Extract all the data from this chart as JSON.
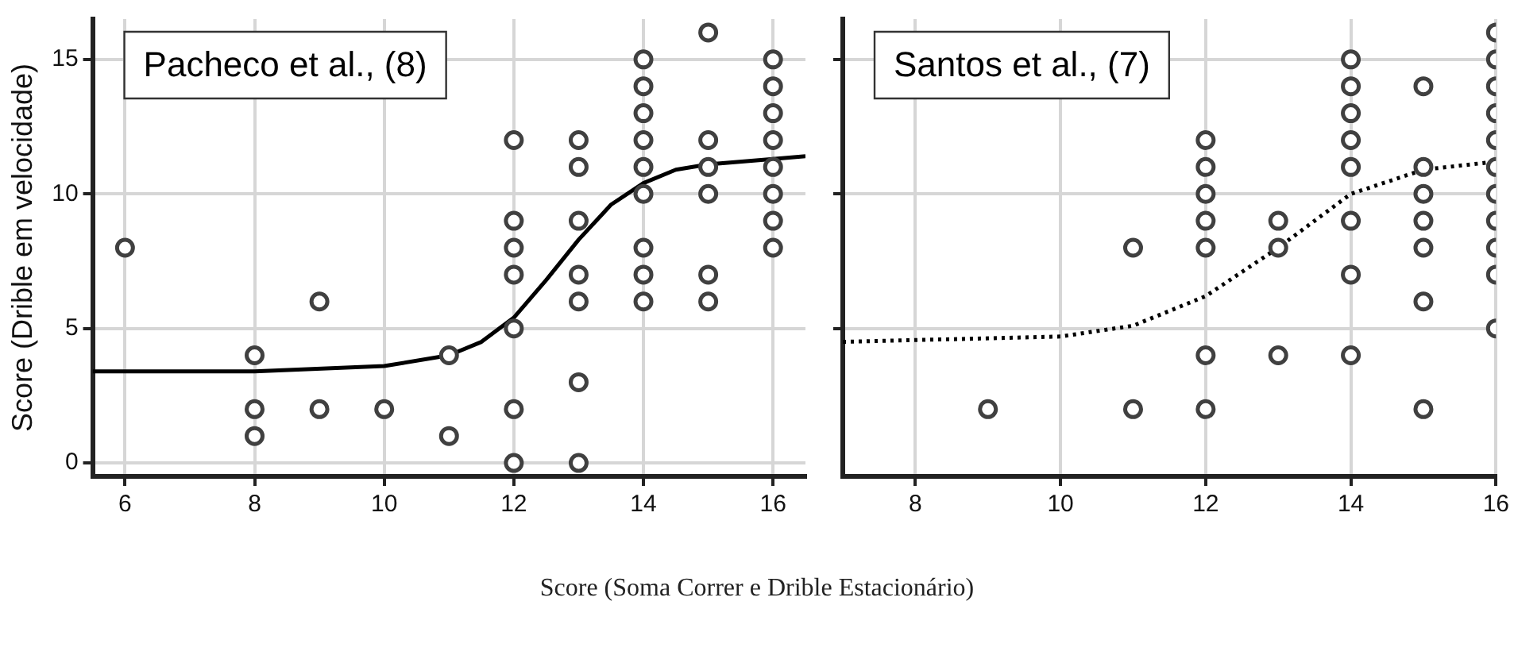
{
  "chart_data": [
    {
      "type": "scatter",
      "ylabel": "Score (Drible em velocidade)",
      "xlabel": "Score (Soma Correr e Drible Estacionário)",
      "annotations": [
        "Pacheco et al., (8)"
      ],
      "xlim": [
        5.5,
        16.5
      ],
      "xticks": [
        6,
        8,
        10,
        12,
        14,
        16
      ],
      "ylim": [
        -0.5,
        16.5
      ],
      "yticks": [
        0,
        5,
        10,
        15
      ],
      "grid": true,
      "legend": false,
      "marker": "circle",
      "series": [
        {
          "type": "scatter",
          "color": "#404040",
          "x": [
            6,
            8,
            8,
            8,
            9,
            9,
            10,
            11,
            11,
            12,
            12,
            12,
            12,
            12,
            12,
            12,
            13,
            13,
            13,
            13,
            13,
            13,
            13,
            14,
            14,
            14,
            14,
            14,
            14,
            14,
            14,
            14,
            15,
            15,
            15,
            15,
            15,
            15,
            16,
            16,
            16,
            16,
            16,
            16,
            16,
            16
          ],
          "values": [
            8,
            4,
            2,
            1,
            6,
            2,
            2,
            4,
            1,
            12,
            9,
            8,
            7,
            5,
            2,
            0,
            12,
            11,
            9,
            7,
            6,
            3,
            0,
            15,
            14,
            13,
            12,
            11,
            10,
            8,
            7,
            6,
            16,
            12,
            11,
            10,
            7,
            6,
            15,
            14,
            13,
            12,
            11,
            10,
            9,
            8
          ]
        },
        {
          "type": "line",
          "color": "#000000",
          "line_style": "solid",
          "marker": "none",
          "x": [
            5.5,
            8,
            10,
            11,
            11.5,
            12,
            12.5,
            13,
            13.5,
            14,
            14.5,
            15,
            16,
            16.5
          ],
          "values": [
            3.4,
            3.4,
            3.6,
            4.0,
            4.5,
            5.4,
            6.8,
            8.3,
            9.6,
            10.4,
            10.9,
            11.1,
            11.3,
            11.4
          ]
        }
      ]
    },
    {
      "type": "scatter",
      "annotations": [
        "Santos et al., (7)"
      ],
      "xlim": [
        7,
        16
      ],
      "xticks": [
        8,
        10,
        12,
        14,
        16
      ],
      "ylim": [
        -0.5,
        16.5
      ],
      "yticks": [
        5,
        10,
        15
      ],
      "tick_labels": "x",
      "grid": true,
      "legend": false,
      "marker": "circle",
      "series": [
        {
          "type": "scatter",
          "color": "#404040",
          "x": [
            9,
            11,
            11,
            12,
            12,
            12,
            12,
            12,
            12,
            12,
            13,
            13,
            13,
            14,
            14,
            14,
            14,
            14,
            14,
            14,
            14,
            15,
            15,
            15,
            15,
            15,
            15,
            15,
            16,
            16,
            16,
            16,
            16,
            16,
            16,
            16,
            16,
            16,
            16
          ],
          "values": [
            2,
            8,
            2,
            12,
            11,
            10,
            9,
            8,
            4,
            2,
            9,
            8,
            4,
            15,
            14,
            13,
            12,
            11,
            9,
            7,
            4,
            14,
            11,
            10,
            9,
            8,
            6,
            2,
            16,
            15,
            14,
            13,
            12,
            11,
            10,
            9,
            8,
            7,
            5
          ]
        },
        {
          "type": "line",
          "color": "#000000",
          "line_style": "dotted",
          "marker": "none",
          "x": [
            7,
            10,
            11,
            12,
            13,
            13.5,
            14,
            15,
            16
          ],
          "values": [
            4.5,
            4.7,
            5.1,
            6.2,
            8.0,
            9.0,
            10.0,
            10.9,
            11.2
          ]
        }
      ]
    }
  ]
}
